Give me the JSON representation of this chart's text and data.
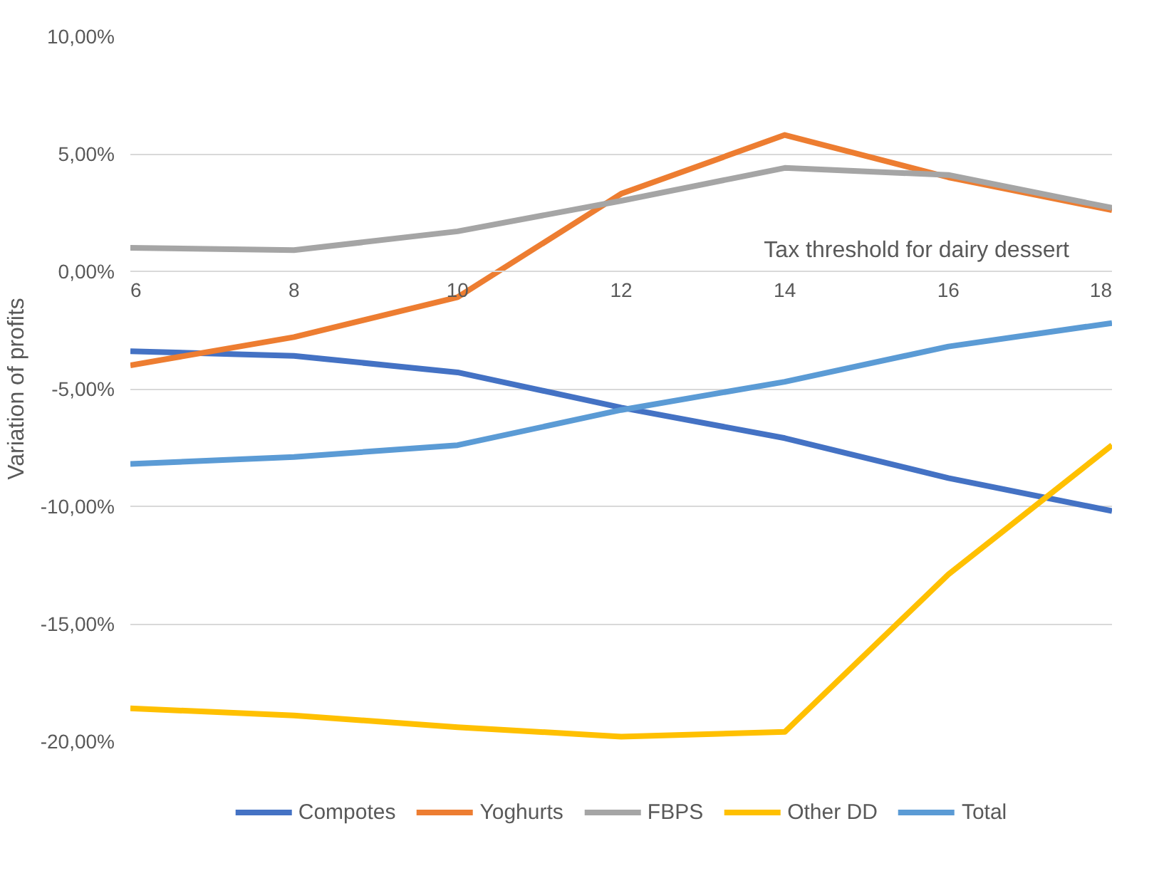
{
  "chart_data": {
    "type": "line",
    "xlabel": "Tax threshold for dairy dessert",
    "ylabel": "Variation of profits",
    "x": [
      6,
      8,
      10,
      12,
      14,
      16,
      18
    ],
    "series": [
      {
        "name": "Compotes",
        "color": "#4472c4",
        "values": [
          -3.4,
          -3.6,
          -4.3,
          -5.8,
          -7.1,
          -8.8,
          -10.2
        ]
      },
      {
        "name": "Yoghurts",
        "color": "#ed7d31",
        "values": [
          -4.0,
          -2.8,
          -1.1,
          3.3,
          5.8,
          4.0,
          2.6
        ]
      },
      {
        "name": "FBPS",
        "color": "#a5a5a5",
        "values": [
          1.0,
          0.9,
          1.7,
          3.0,
          4.4,
          4.1,
          2.7
        ]
      },
      {
        "name": "Other DD",
        "color": "#ffc000",
        "values": [
          -18.6,
          -18.9,
          -19.4,
          -19.8,
          -19.6,
          -12.9,
          -7.4
        ]
      },
      {
        "name": "Total",
        "color": "#5b9bd5",
        "values": [
          -8.2,
          -7.9,
          -7.4,
          -5.9,
          -4.7,
          -3.2,
          -2.2
        ]
      }
    ],
    "xlim": [
      6,
      18
    ],
    "xticks": [
      6,
      8,
      10,
      12,
      14,
      16,
      18
    ],
    "ylim": [
      -20,
      10
    ],
    "yticks": [
      {
        "value": -20,
        "label": "-20,00%"
      },
      {
        "value": -15,
        "label": "-15,00%"
      },
      {
        "value": -10,
        "label": "-10,00%"
      },
      {
        "value": -5,
        "label": "-5,00%"
      },
      {
        "value": 0,
        "label": "0,00%"
      },
      {
        "value": 5,
        "label": "5,00%"
      },
      {
        "value": 10,
        "label": "10,00%"
      }
    ],
    "grid": "y",
    "legend": "bottom",
    "marker": "none",
    "line_style": "solid"
  }
}
